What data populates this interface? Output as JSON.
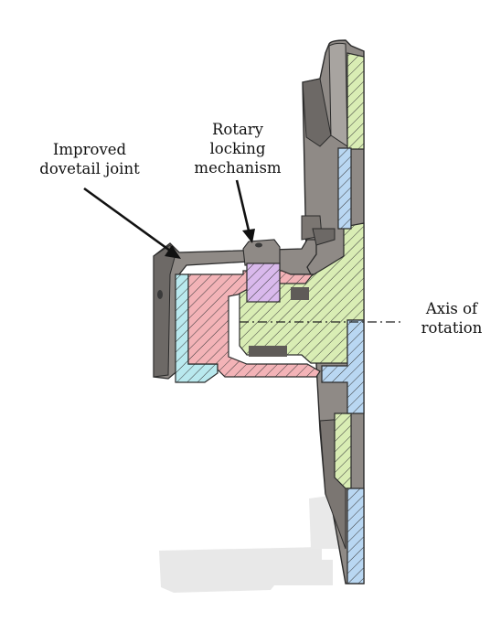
{
  "labels": {
    "dovetail": "Improved\ndovetail joint",
    "rotary": "Rotary\nlocking\nmechanism",
    "axis": "Axis of\nrotation"
  },
  "colors": {
    "background": "#ffffff",
    "metal_face": "#8f8a86",
    "metal_dark": "#6d6966",
    "metal_light": "#a8a4a0",
    "outline": "#2b2b2b",
    "green_section": "#d9edb4",
    "blue_section": "#b9d7f2",
    "red_section": "#f3b3b7",
    "purple_section": "#d9b9ec",
    "cyan_section": "#b9e9ee",
    "shadow": "#e6e6e6"
  }
}
